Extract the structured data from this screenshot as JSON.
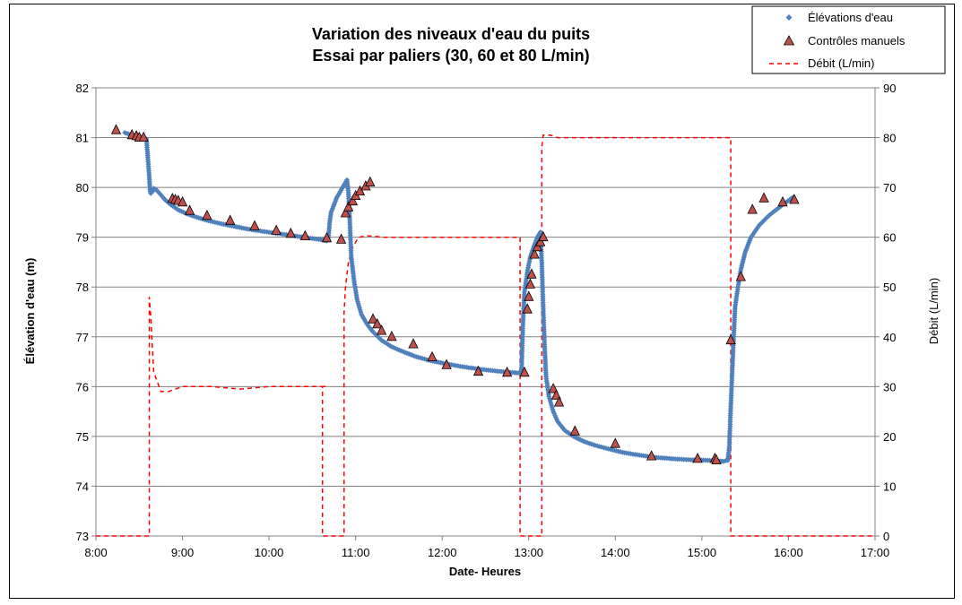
{
  "chart_data": {
    "type": "scatter",
    "title": "Variation des niveaux d'eau du puits",
    "subtitle": "Essai par paliers (30, 60 et 80 L/min)",
    "xlabel": "Date- Heures",
    "ylabel": "Élévation d'eau (m)",
    "y2label": "Débit (L/min)",
    "xlim": [
      "8:00",
      "17:00"
    ],
    "ylim": [
      73,
      82
    ],
    "y2lim": [
      0,
      90
    ],
    "x_ticks": [
      "8:00",
      "9:00",
      "10:00",
      "11:00",
      "12:00",
      "13:00",
      "14:00",
      "15:00",
      "16:00",
      "17:00"
    ],
    "y_ticks": [
      "73",
      "74",
      "75",
      "76",
      "77",
      "78",
      "79",
      "80",
      "81",
      "82"
    ],
    "y2_ticks": [
      "0",
      "10",
      "20",
      "30",
      "40",
      "50",
      "60",
      "70",
      "80",
      "90"
    ],
    "grid": "horizontal",
    "legend_position": "top-right",
    "legend": [
      "Élévations d'eau",
      "Contrôles manuels",
      "Débit (L/min)"
    ],
    "colors": {
      "elevations": "#4f81bd",
      "controles_fill": "#c0504d",
      "debit": "#ff0000"
    },
    "series": [
      {
        "name": "Élévations d'eau",
        "marker": "diamond",
        "axis": "left",
        "x": [
          "08:20",
          "08:25",
          "08:30",
          "08:33",
          "08:35",
          "08:36",
          "08:37",
          "08:37:30",
          "08:38",
          "08:39",
          "08:40",
          "08:42",
          "08:45",
          "08:48",
          "08:52",
          "08:57",
          "09:03",
          "09:10",
          "09:18",
          "09:27",
          "09:37",
          "09:48",
          "10:00",
          "10:12",
          "10:24",
          "10:36",
          "10:40",
          "10:41",
          "10:42",
          "10:43",
          "10:45",
          "10:47",
          "10:50",
          "10:52",
          "10:54",
          "10:55",
          "10:56",
          "10:57",
          "10:59",
          "11:01",
          "11:04",
          "11:08",
          "11:12",
          "11:18",
          "11:25",
          "11:33",
          "11:42",
          "11:52",
          "12:02",
          "12:14",
          "12:26",
          "12:38",
          "12:50",
          "12:54",
          "12:55",
          "12:56",
          "12:57",
          "12:59",
          "13:01",
          "13:04",
          "13:06",
          "13:08",
          "13:09",
          "13:10",
          "13:11",
          "13:12",
          "13:14",
          "13:17",
          "13:20",
          "13:25",
          "13:31",
          "13:38",
          "13:46",
          "13:55",
          "14:05",
          "14:15",
          "14:27",
          "14:40",
          "14:52",
          "15:04",
          "15:10",
          "15:15",
          "15:18",
          "15:19",
          "15:20",
          "15:21",
          "15:22",
          "15:23",
          "15:25",
          "15:27",
          "15:30",
          "15:34",
          "15:40",
          "15:47",
          "15:55",
          "16:03"
        ],
        "values": [
          81.1,
          81.05,
          81.0,
          80.98,
          80.97,
          80.6,
          80.2,
          79.95,
          79.88,
          79.92,
          79.98,
          79.95,
          79.85,
          79.75,
          79.65,
          79.55,
          79.47,
          79.4,
          79.33,
          79.27,
          79.21,
          79.15,
          79.1,
          79.05,
          79.0,
          78.95,
          78.93,
          78.95,
          79.3,
          79.5,
          79.65,
          79.8,
          79.95,
          80.05,
          80.15,
          79.9,
          79.3,
          78.6,
          78.1,
          77.75,
          77.45,
          77.25,
          77.1,
          76.93,
          76.8,
          76.7,
          76.6,
          76.52,
          76.46,
          76.4,
          76.35,
          76.31,
          76.28,
          76.27,
          76.35,
          77.3,
          77.9,
          78.3,
          78.6,
          78.85,
          79.0,
          79.1,
          78.5,
          77.6,
          76.8,
          76.2,
          75.8,
          75.5,
          75.3,
          75.12,
          75.0,
          74.9,
          74.82,
          74.75,
          74.68,
          74.63,
          74.58,
          74.55,
          74.53,
          74.52,
          74.51,
          74.5,
          74.52,
          74.8,
          75.6,
          76.3,
          77.0,
          77.6,
          78.0,
          78.35,
          78.7,
          79.0,
          79.25,
          79.45,
          79.63,
          79.8
        ]
      },
      {
        "name": "Contrôles manuels",
        "marker": "triangle",
        "axis": "left",
        "x": [
          "08:14",
          "08:25",
          "08:28",
          "08:30",
          "08:33",
          "08:53",
          "08:55",
          "08:57",
          "09:00",
          "09:05",
          "09:17",
          "09:33",
          "09:50",
          "10:05",
          "10:15",
          "10:25",
          "10:40",
          "10:50",
          "10:53",
          "10:55",
          "10:58",
          "11:00",
          "11:03",
          "11:07",
          "11:10",
          "11:12",
          "11:15",
          "11:18",
          "11:25",
          "11:40",
          "11:53",
          "12:03",
          "12:25",
          "12:45",
          "12:57",
          "12:59",
          "13:00",
          "13:01",
          "13:02",
          "13:04",
          "13:06",
          "13:08",
          "13:10",
          "13:17",
          "13:19",
          "13:21",
          "13:32",
          "14:00",
          "14:25",
          "14:57",
          "15:09",
          "15:10",
          "15:20",
          "15:27",
          "15:35",
          "15:43",
          "15:56",
          "16:04"
        ],
        "values": [
          81.15,
          81.05,
          81.03,
          81.0,
          81.0,
          79.77,
          79.75,
          79.73,
          79.7,
          79.53,
          79.43,
          79.33,
          79.22,
          79.13,
          79.07,
          79.02,
          78.98,
          78.95,
          79.48,
          79.6,
          79.72,
          79.83,
          79.92,
          80.02,
          80.1,
          77.35,
          77.25,
          77.12,
          77.0,
          76.85,
          76.59,
          76.43,
          76.3,
          76.28,
          76.28,
          77.55,
          77.8,
          78.05,
          78.25,
          78.65,
          78.8,
          78.9,
          79.0,
          75.95,
          75.82,
          75.68,
          75.1,
          74.85,
          74.6,
          74.55,
          74.55,
          74.52,
          76.93,
          78.2,
          79.55,
          79.78,
          79.7,
          79.75
        ]
      },
      {
        "name": "Débit (L/min)",
        "line": "dashed",
        "axis": "right",
        "x": [
          "08:00",
          "08:37",
          "08:37",
          "08:38",
          "08:40",
          "08:45",
          "08:50",
          "09:00",
          "09:20",
          "09:40",
          "10:00",
          "10:20",
          "10:40",
          "10:37",
          "10:37",
          "10:52",
          "10:52",
          "10:53",
          "10:55",
          "10:58",
          "11:02",
          "11:08",
          "11:20",
          "11:40",
          "12:00",
          "12:20",
          "12:40",
          "12:53",
          "12:54",
          "12:54",
          "13:09",
          "13:09",
          "13:10",
          "13:12",
          "13:15",
          "13:20",
          "13:30",
          "13:45",
          "14:00",
          "14:30",
          "15:00",
          "15:20",
          "15:20",
          "17:00"
        ],
        "values": [
          0,
          0,
          48,
          44,
          33,
          29,
          29,
          30,
          30,
          29.5,
          30,
          30,
          30,
          30,
          0,
          0,
          45,
          50,
          55,
          58,
          60,
          60.3,
          60,
          60,
          60,
          60,
          60,
          60,
          60,
          0,
          0,
          78,
          80.5,
          80.5,
          80.5,
          80,
          80,
          80,
          80,
          80,
          80,
          80,
          0,
          0
        ]
      }
    ]
  }
}
